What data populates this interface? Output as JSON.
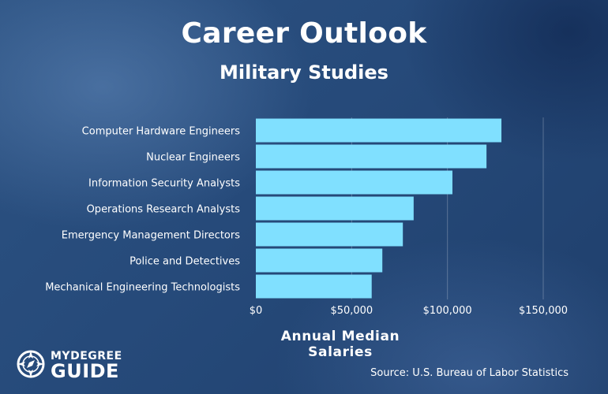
{
  "header": {
    "title": "Career Outlook",
    "subtitle": "Military Studies"
  },
  "footer": {
    "logo_line1": "MYDEGREE",
    "logo_line2": "GUIDE",
    "source": "Source: U.S. Bureau of Labor Statistics"
  },
  "colors": {
    "bar": "#80e0ff",
    "grid": "rgba(255,255,255,0.25)",
    "text": "#ffffff"
  },
  "chart_data": {
    "type": "bar",
    "orientation": "horizontal",
    "title": "Career Outlook",
    "subtitle": "Military Studies",
    "xlabel": "Annual Median Salaries",
    "ylabel": "",
    "categories": [
      "Computer Hardware Engineers",
      "Nuclear Engineers",
      "Information Security Analysts",
      "Operations Research Analysts",
      "Emergency Management Directors",
      "Police and Detectives",
      "Mechanical Engineering Technologists"
    ],
    "values": [
      128170,
      120380,
      102600,
      82360,
      76730,
      66020,
      60460
    ],
    "xlim": [
      0,
      150000
    ],
    "xticks": [
      0,
      50000,
      100000,
      150000
    ],
    "xtick_labels": [
      "$0",
      "$50,000",
      "$100,000",
      "$150,000"
    ],
    "grid": true,
    "legend": "none"
  }
}
